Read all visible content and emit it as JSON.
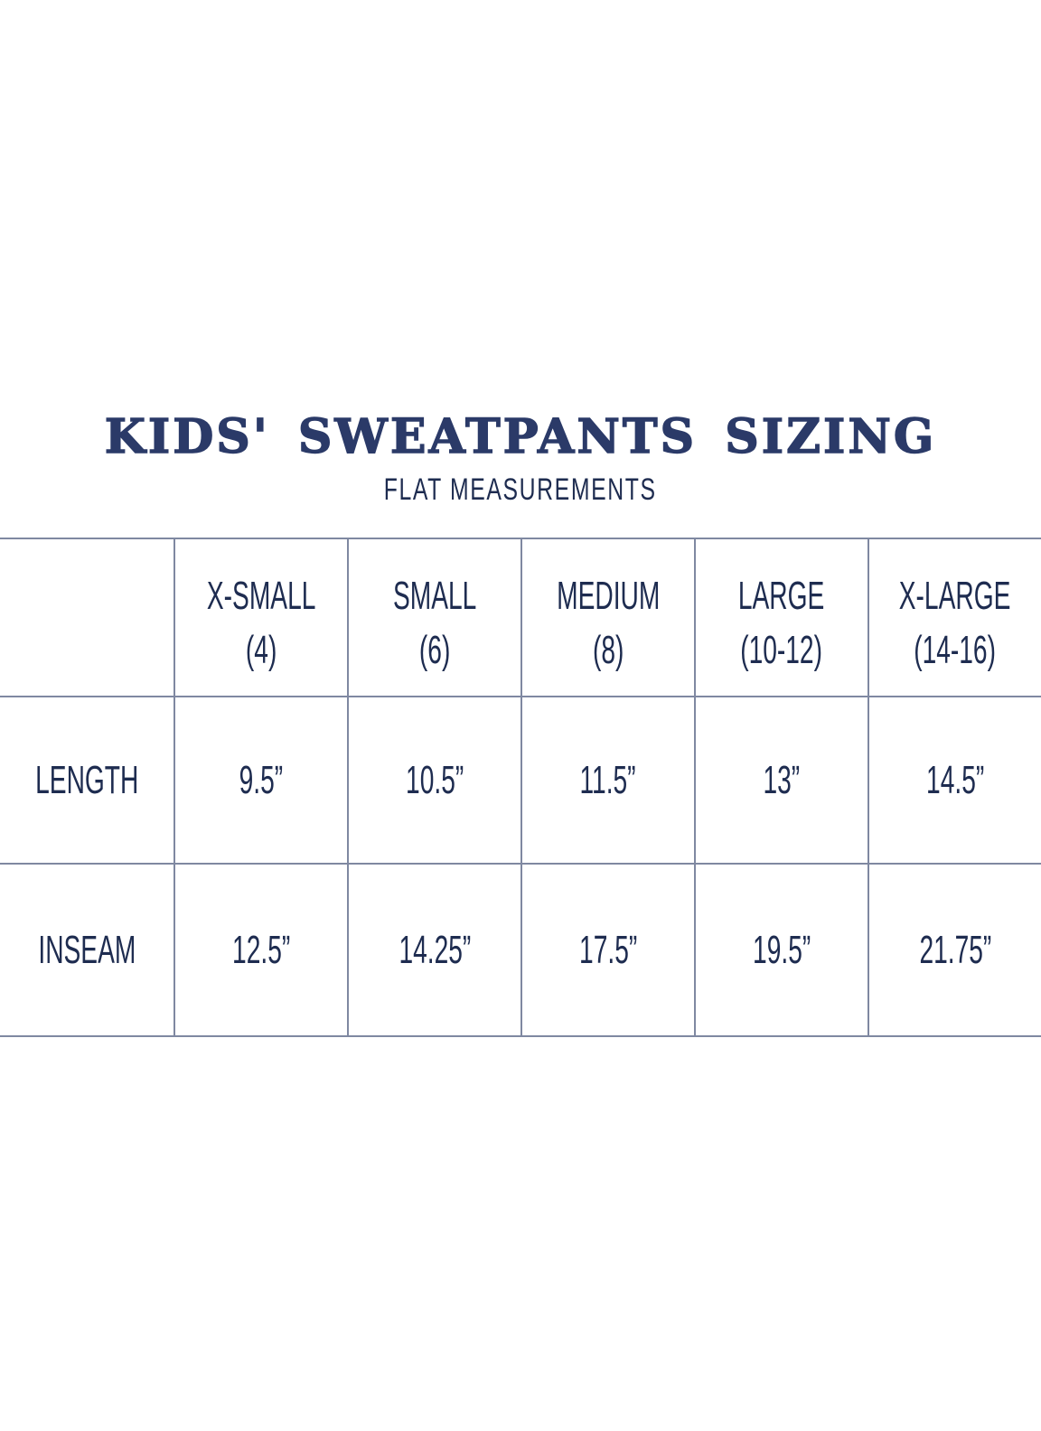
{
  "page": {
    "title": "KIDS' SWEATPANTS SIZING",
    "subtitle": "FLAT MEASUREMENTS"
  },
  "colors": {
    "text": "#1e2c50",
    "title": "#2b3a68",
    "grid_line": "#7f88a1",
    "background": "#ffffff"
  },
  "chart_data": {
    "type": "table",
    "title": "KIDS' SWEATPANTS SIZING",
    "subtitle": "FLAT MEASUREMENTS",
    "columns": [
      {
        "label": "X-SMALL",
        "sub": "(4)"
      },
      {
        "label": "SMALL",
        "sub": "(6)"
      },
      {
        "label": "MEDIUM",
        "sub": "(8)"
      },
      {
        "label": "LARGE",
        "sub": "(10-12)"
      },
      {
        "label": "X-LARGE",
        "sub": "(14-16)"
      }
    ],
    "rows": [
      {
        "label": "LENGTH",
        "values": [
          "9.5”",
          "10.5”",
          "11.5”",
          "13”",
          "14.5”"
        ]
      },
      {
        "label": "INSEAM",
        "values": [
          "12.5”",
          "14.25”",
          "17.5”",
          "19.5”",
          "21.75”"
        ]
      }
    ]
  }
}
